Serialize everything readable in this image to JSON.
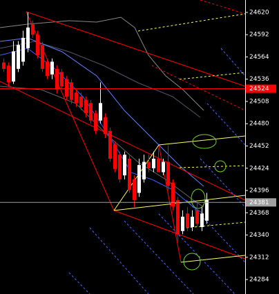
{
  "chart_data": {
    "type": "candlestick",
    "open": [
      24557,
      24553,
      24533,
      24549,
      24558,
      24575,
      24605,
      24592,
      24579,
      24558,
      24542,
      24549,
      24545,
      24536,
      24532,
      24519,
      24514,
      24510,
      24506,
      24493,
      24484,
      24488,
      24471,
      24454,
      24441,
      24415,
      24436,
      24410,
      24393,
      24410,
      24432,
      24424,
      24436,
      24419,
      24432,
      24406,
      24384,
      24345,
      24367,
      24350,
      24371,
      24350,
      24358
    ],
    "high": [
      24562,
      24557,
      24584,
      24584,
      24597,
      24620,
      24610,
      24597,
      24583,
      24562,
      24562,
      24553,
      24549,
      24540,
      24536,
      24523,
      24519,
      24514,
      24510,
      24497,
      24532,
      24493,
      24475,
      24458,
      24445,
      24445,
      24440,
      24415,
      24436,
      24441,
      24441,
      24445,
      24449,
      24436,
      24453,
      24410,
      24388,
      24371,
      24375,
      24371,
      24380,
      24375,
      24393
    ],
    "low": [
      24545,
      24527,
      24530,
      24545,
      24553,
      24570,
      24588,
      24562,
      24545,
      24536,
      24536,
      24518,
      24523,
      24510,
      24505,
      24501,
      24497,
      24488,
      24480,
      24467,
      24480,
      24462,
      24432,
      24419,
      24406,
      24410,
      24393,
      24375,
      24388,
      24406,
      24419,
      24419,
      24419,
      24415,
      24397,
      24371,
      24332,
      24341,
      24345,
      24345,
      24350,
      24345,
      24354
    ],
    "close": [
      24549,
      24532,
      24571,
      24579,
      24588,
      24601,
      24592,
      24566,
      24549,
      24540,
      24558,
      24523,
      24527,
      24514,
      24510,
      24506,
      24501,
      24493,
      24484,
      24471,
      24506,
      24467,
      24436,
      24423,
      24410,
      24441,
      24397,
      24384,
      24428,
      24432,
      24424,
      24436,
      24419,
      24432,
      24402,
      24376,
      24341,
      24363,
      24350,
      24363,
      24354,
      24367,
      24384
    ],
    "up_color": "#ffffff",
    "down_color": "#ff0000",
    "ylim": [
      24265.8,
      24635.6
    ],
    "yticks": [
      24620,
      24592,
      24564,
      24536,
      24508,
      24480,
      24452,
      24424,
      24396,
      24368,
      24340,
      24312,
      24284
    ],
    "price_lines": [
      {
        "value": 24524,
        "color": "#ff0000"
      },
      {
        "value": 24381,
        "color": "#a0a0a0"
      }
    ]
  }
}
